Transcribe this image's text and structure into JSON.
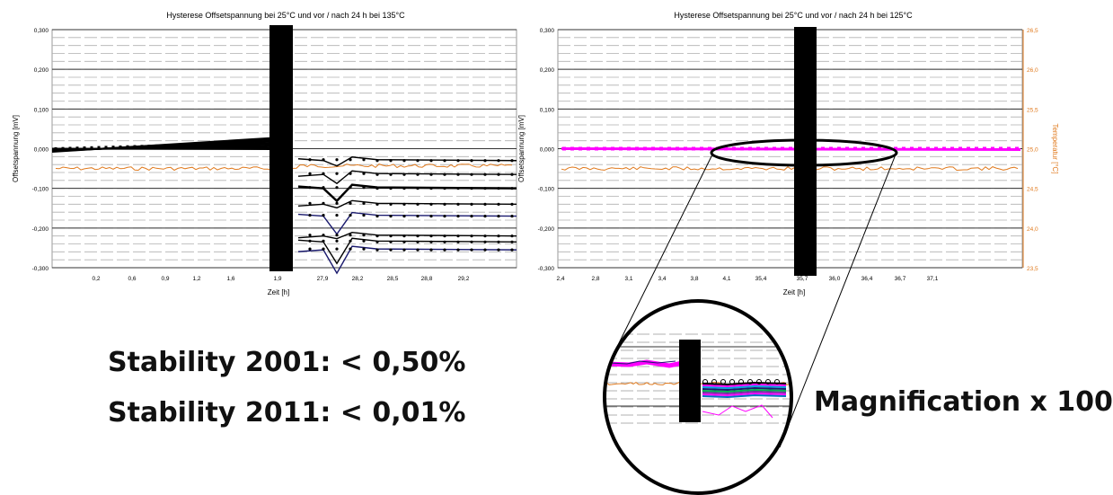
{
  "texts": {
    "stability_2001": "Stability 2001: < 0,50%",
    "stability_2011": "Stability 2011: < 0,01%",
    "magnification": "Magnification x 100"
  },
  "colors": {
    "temperature_line": "#e07a1e",
    "magenta_series": "#ff00ff",
    "black_series": "#000000",
    "grid": "#b0b0b0"
  },
  "chart_data": [
    {
      "type": "line",
      "title": "Hysterese Offsetspannung bei 25°C und vor / nach 24 h bei 135°C",
      "xlabel": "Zeit [h]",
      "ylabel": "Offsetspannung [mV]",
      "ylim": [
        -0.3,
        0.3
      ],
      "y_ticks": [
        "0,300",
        "0,200",
        "0,100",
        "0,000",
        "-0,100",
        "-0,200",
        "-0,300"
      ],
      "x_ticks": [
        "0,2",
        "0,6",
        "0,9",
        "1,2",
        "1,6",
        "1,9",
        "27,9",
        "28,2",
        "28,5",
        "28,8",
        "29,2"
      ],
      "grid": true,
      "before_segment": {
        "start_value": 0.0,
        "end_value": 0.015
      },
      "after_values": [
        -0.03,
        -0.065,
        -0.1,
        -0.14,
        -0.17,
        -0.22,
        -0.235,
        -0.255
      ],
      "temperature_level": -0.05
    },
    {
      "type": "line",
      "title": "Hysterese Offsetspannung bei 25°C und vor / nach 24 h bei 125°C",
      "xlabel": "Zeit [h]",
      "ylabel": "Offsetspannung [mV]",
      "y2label": "Temperatur [°C]",
      "ylim": [
        -0.3,
        0.3
      ],
      "y2lim": [
        23.5,
        26.5
      ],
      "y_ticks": [
        "0,300",
        "0,200",
        "0,100",
        "0,000",
        "-0,100",
        "-0,200",
        "-0,300"
      ],
      "y2_ticks": [
        "26,5",
        "26,0",
        "25,5",
        "25,0",
        "24,5",
        "24,0",
        "23,5"
      ],
      "x_ticks": [
        "2,4",
        "2,8",
        "3,1",
        "3,4",
        "3,8",
        "4,1",
        "35,4",
        "35,7",
        "36,0",
        "36,4",
        "36,7",
        "37,1"
      ],
      "grid": true,
      "offset_level": 0.0,
      "temperature_level": 24.75
    }
  ]
}
